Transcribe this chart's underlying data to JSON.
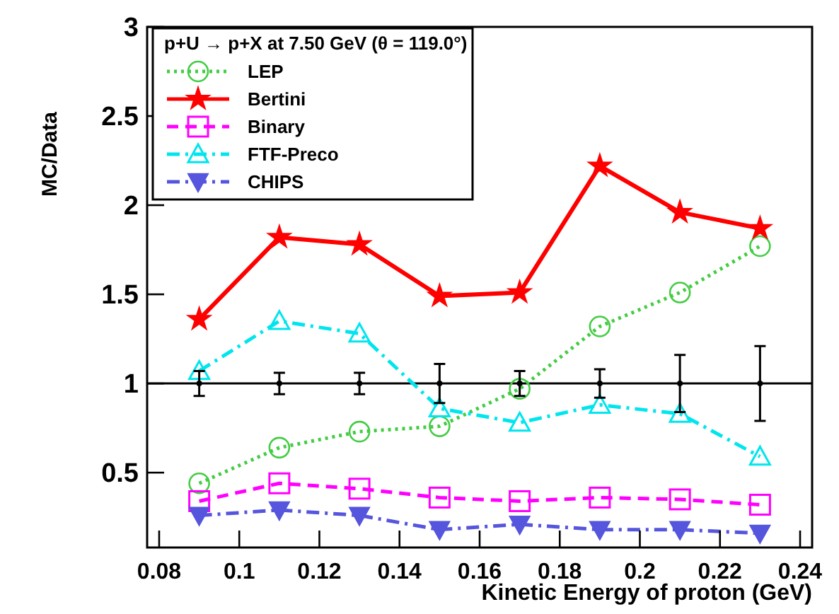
{
  "chart_data": {
    "type": "line",
    "legend_title": "p+U → p+X at 7.50 GeV (θ = 119.0°)",
    "xlabel": "Kinetic Energy of proton (GeV)",
    "ylabel": "MC/Data",
    "x": [
      0.09,
      0.11,
      0.13,
      0.15,
      0.17,
      0.19,
      0.21,
      0.23
    ],
    "xlim": [
      0.077,
      0.243
    ],
    "xticks": [
      0.08,
      0.1,
      0.12,
      0.14,
      0.16,
      0.18,
      0.2,
      0.22,
      0.24
    ],
    "ylim": [
      0.08,
      3
    ],
    "yticks": [
      0.5,
      1,
      1.5,
      2,
      2.5,
      3
    ],
    "legend": "top left",
    "grid": false,
    "ref_lines": [
      {
        "axis": "y",
        "value": 1,
        "color": "#000000"
      }
    ],
    "series": [
      {
        "name": "LEP",
        "color": "#44cc44",
        "marker": "circle",
        "line_style": "dotted",
        "values": [
          0.44,
          0.64,
          0.73,
          0.76,
          0.97,
          1.32,
          1.51,
          1.77
        ]
      },
      {
        "name": "Bertini",
        "color": "#ff0000",
        "marker": "star",
        "line_style": "solid",
        "values": [
          1.36,
          1.82,
          1.78,
          1.49,
          1.51,
          2.22,
          1.96,
          1.87
        ]
      },
      {
        "name": "Binary",
        "color": "#ff00ff",
        "marker": "square",
        "line_style": "dashed",
        "values": [
          0.34,
          0.44,
          0.41,
          0.36,
          0.34,
          0.36,
          0.35,
          0.32
        ]
      },
      {
        "name": "FTF-Preco",
        "color": "#00e5ee",
        "marker": "triangle",
        "line_style": "dashdot",
        "values": [
          1.07,
          1.35,
          1.28,
          0.86,
          0.78,
          0.88,
          0.83,
          0.59
        ]
      },
      {
        "name": "CHIPS",
        "color": "#5555dd",
        "marker": "triangle-down",
        "line_style": "dashdot",
        "values": [
          0.26,
          0.29,
          0.26,
          0.18,
          0.21,
          0.18,
          0.18,
          0.16
        ]
      },
      {
        "type": "scatter",
        "color": "#000000",
        "values": [
          1,
          1,
          1,
          1,
          1,
          1,
          1,
          1
        ],
        "errors": [
          0.07,
          0.06,
          0.06,
          0.11,
          0.07,
          0.08,
          0.16,
          0.21
        ]
      }
    ]
  }
}
